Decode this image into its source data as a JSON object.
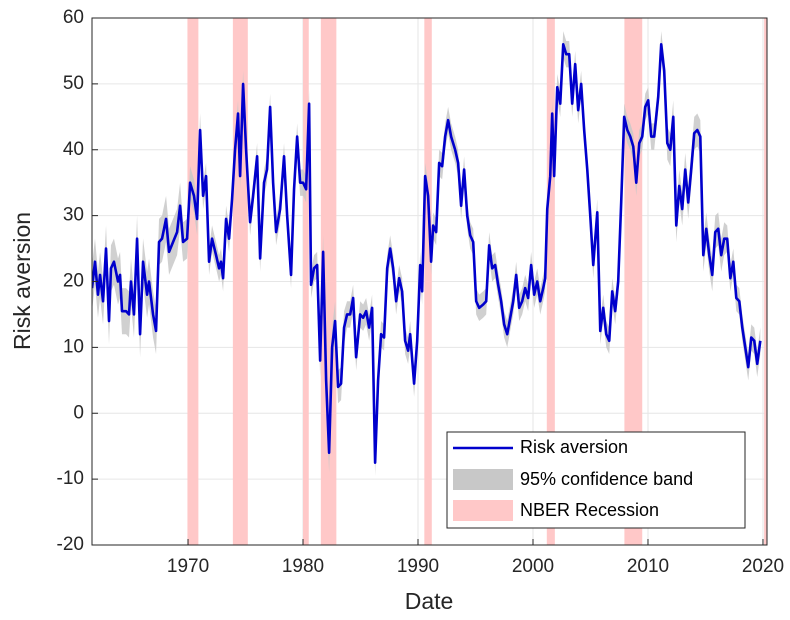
{
  "chart_data": {
    "type": "line",
    "xlabel": "Date",
    "ylabel": "Risk aversion",
    "xlim": [
      1961.65,
      2020.35
    ],
    "ylim": [
      -20,
      60
    ],
    "xticks": [
      1970,
      1980,
      1990,
      2000,
      2010,
      2020
    ],
    "yticks": [
      -20,
      -10,
      0,
      10,
      20,
      30,
      40,
      50,
      60
    ],
    "grid": true,
    "legend": "lower right",
    "series": [
      {
        "name": "Risk aversion",
        "color": "#0000cc",
        "error_name": "95% confidence band",
        "error_color": "#c8c8c8",
        "x": [
          1961.65,
          1961.91,
          1962.17,
          1962.35,
          1962.61,
          1962.87,
          1963.13,
          1963.3,
          1963.56,
          1963.91,
          1964.09,
          1964.26,
          1964.61,
          1964.87,
          1965.04,
          1965.3,
          1965.57,
          1965.83,
          1966.09,
          1966.44,
          1966.61,
          1966.96,
          1967.22,
          1967.48,
          1967.74,
          1968.09,
          1968.35,
          1968.7,
          1969.05,
          1969.31,
          1969.57,
          1969.92,
          1970.18,
          1970.52,
          1970.79,
          1971.05,
          1971.31,
          1971.57,
          1971.83,
          1972.09,
          1972.44,
          1972.7,
          1972.87,
          1973.05,
          1973.31,
          1973.57,
          1973.83,
          1974.09,
          1974.35,
          1974.53,
          1974.79,
          1975.05,
          1975.4,
          1975.66,
          1976.01,
          1976.27,
          1976.61,
          1976.87,
          1977.14,
          1977.4,
          1977.66,
          1978.01,
          1978.35,
          1978.62,
          1978.96,
          1979.22,
          1979.49,
          1979.75,
          1980.01,
          1980.27,
          1980.53,
          1980.7,
          1980.96,
          1981.23,
          1981.49,
          1981.75,
          1982.01,
          1982.27,
          1982.53,
          1982.79,
          1983.05,
          1983.31,
          1983.57,
          1983.83,
          1984.1,
          1984.36,
          1984.62,
          1984.97,
          1985.23,
          1985.49,
          1985.75,
          1986.01,
          1986.27,
          1986.53,
          1986.79,
          1987.05,
          1987.32,
          1987.58,
          1987.84,
          1988.1,
          1988.36,
          1988.62,
          1988.88,
          1989.14,
          1989.32,
          1989.66,
          1989.93,
          1990.19,
          1990.36,
          1990.62,
          1990.88,
          1991.14,
          1991.32,
          1991.58,
          1991.84,
          1992.1,
          1992.36,
          1992.62,
          1992.88,
          1993.23,
          1993.49,
          1993.75,
          1994.01,
          1994.28,
          1994.54,
          1994.8,
          1995.06,
          1995.32,
          1995.67,
          1995.93,
          1996.19,
          1996.45,
          1996.71,
          1996.97,
          1997.23,
          1997.49,
          1997.76,
          1998.02,
          1998.28,
          1998.54,
          1998.8,
          1999.06,
          1999.32,
          1999.58,
          1999.84,
          2000.1,
          2000.37,
          2000.63,
          2000.89,
          2001.06,
          2001.24,
          2001.5,
          2001.67,
          2001.84,
          2002.11,
          2002.37,
          2002.63,
          2002.89,
          2003.15,
          2003.41,
          2003.67,
          2003.93,
          2004.19,
          2004.45,
          2004.72,
          2004.98,
          2005.24,
          2005.59,
          2005.85,
          2006.11,
          2006.37,
          2006.63,
          2006.89,
          2007.15,
          2007.41,
          2007.67,
          2007.93,
          2008.2,
          2008.46,
          2008.72,
          2008.98,
          2009.24,
          2009.5,
          2009.76,
          2010.02,
          2010.28,
          2010.54,
          2010.89,
          2011.15,
          2011.41,
          2011.68,
          2011.94,
          2012.2,
          2012.46,
          2012.72,
          2012.98,
          2013.24,
          2013.5,
          2013.76,
          2014.02,
          2014.29,
          2014.55,
          2014.81,
          2015.07,
          2015.33,
          2015.59,
          2015.85,
          2016.11,
          2016.37,
          2016.63,
          2016.89,
          2017.16,
          2017.42,
          2017.68,
          2017.94,
          2018.2,
          2018.46,
          2018.72,
          2018.98,
          2019.24,
          2019.5,
          2019.77
        ],
        "values": [
          19,
          23,
          18,
          21,
          17,
          25,
          14,
          22,
          23,
          20,
          21,
          15.5,
          15.5,
          15,
          20,
          15,
          26.5,
          12,
          23,
          18,
          20,
          15,
          12.5,
          26,
          26.5,
          29.5,
          24.5,
          26,
          27.5,
          31.5,
          26,
          26.5,
          35,
          33,
          29.5,
          43,
          33,
          36,
          23,
          26.5,
          24,
          22,
          23,
          20.5,
          29.5,
          26.5,
          32.5,
          40,
          45.5,
          36,
          50,
          40,
          29,
          33,
          39,
          23.5,
          35,
          37,
          46.5,
          35,
          27.5,
          31,
          39,
          30,
          21,
          34,
          42,
          35,
          35,
          34,
          47,
          19.5,
          22,
          22.5,
          8,
          24.5,
          5,
          -6,
          10,
          14,
          4,
          4.5,
          13,
          15,
          15,
          17.5,
          8.5,
          15,
          14.5,
          15.5,
          13,
          16,
          -7.5,
          5,
          12,
          11.5,
          22,
          25,
          22,
          17,
          20.5,
          18.5,
          11,
          9.5,
          12,
          4.5,
          11,
          22.5,
          18.5,
          36,
          33,
          23,
          28.5,
          27.5,
          38,
          37.5,
          42,
          44.5,
          42,
          40,
          38,
          31.5,
          37,
          30,
          27,
          26,
          17,
          16,
          16.5,
          17,
          25.5,
          22,
          22.5,
          19.5,
          17,
          13.5,
          12,
          14.5,
          17,
          21,
          16,
          17,
          19,
          17.5,
          22.5,
          18,
          20,
          17,
          19,
          20.5,
          31,
          36,
          45.5,
          36,
          49.5,
          47,
          56,
          54.5,
          54.5,
          47,
          53,
          46,
          50,
          43,
          37,
          30,
          22.5,
          30.5,
          12.5,
          16,
          12,
          11,
          18.5,
          15.5,
          20,
          32,
          45,
          43,
          42,
          40.5,
          35,
          41,
          42,
          46.5,
          47.5,
          42,
          42,
          48,
          56,
          52,
          41,
          40,
          45,
          28.5,
          34.5,
          31,
          37,
          32,
          37,
          42.5,
          43,
          42,
          24,
          28,
          24,
          21,
          27.5,
          28,
          24,
          26.5,
          26.5,
          20.5,
          23,
          17.5,
          17,
          13,
          10,
          7,
          11.5,
          11,
          7.5,
          11
        ],
        "errors": [
          3.5,
          3.5,
          3.5,
          3.5,
          3.5,
          3.5,
          3.5,
          3.5,
          3.5,
          3.5,
          3.5,
          3.5,
          3.5,
          3.5,
          3.5,
          3.5,
          3.5,
          3.5,
          3.5,
          3.5,
          3.5,
          3.5,
          3.5,
          3.5,
          3.5,
          3.5,
          3.5,
          3.5,
          3.5,
          3.5,
          3,
          3,
          2.5,
          2.5,
          2.5,
          2.5,
          2,
          2,
          2,
          2,
          2,
          2,
          2,
          2,
          2,
          2,
          2,
          2,
          2,
          2,
          2,
          2,
          2,
          2,
          2,
          2,
          2,
          2,
          2,
          2,
          2,
          2,
          2,
          2,
          2,
          2,
          2,
          2,
          2,
          2,
          2,
          2,
          2,
          2,
          2.5,
          2.5,
          3,
          3,
          3,
          3,
          2.5,
          2.5,
          2.5,
          2,
          2,
          2,
          2,
          2,
          2,
          2,
          2,
          2,
          2,
          2,
          2,
          2,
          2,
          2,
          2,
          2,
          2,
          2,
          2,
          2,
          2,
          2,
          2,
          2,
          2,
          2,
          2,
          2,
          2,
          2,
          2,
          2,
          2,
          2,
          2,
          2,
          2,
          2,
          2,
          2,
          2,
          2,
          2,
          2,
          2,
          2,
          2,
          2,
          2,
          2,
          2,
          2,
          2,
          2,
          2,
          2,
          2,
          2,
          2,
          2,
          2,
          2,
          2,
          2,
          2,
          2,
          2,
          2,
          2,
          2,
          2,
          2,
          2,
          2,
          2,
          2,
          2,
          2,
          2,
          2,
          2,
          2,
          2,
          2,
          2,
          2,
          2,
          2,
          2,
          2,
          2,
          2,
          2,
          2,
          2,
          2,
          2,
          2,
          2,
          2,
          2,
          2,
          2,
          2,
          2,
          2,
          2.5,
          2.5,
          2.5,
          2.5,
          2.5,
          2.5,
          2.5,
          2.5,
          2.5,
          2.5,
          2.5,
          2.5,
          2.5,
          2.5,
          2.5,
          2.5,
          2.5,
          2.5,
          2.5,
          2.5,
          2,
          2,
          2,
          2,
          2,
          2,
          2,
          2,
          2,
          2,
          2,
          2
        ]
      }
    ],
    "recessions": {
      "name": "NBER Recession",
      "color": "#ffc8c8",
      "periods": [
        [
          1969.95,
          1970.9
        ],
        [
          1973.9,
          1975.2
        ],
        [
          1980.0,
          1980.5
        ],
        [
          1981.55,
          1982.9
        ],
        [
          1990.55,
          1991.2
        ],
        [
          2001.2,
          2001.9
        ],
        [
          2007.95,
          2009.5
        ],
        [
          2020.1,
          2020.4
        ]
      ]
    }
  }
}
